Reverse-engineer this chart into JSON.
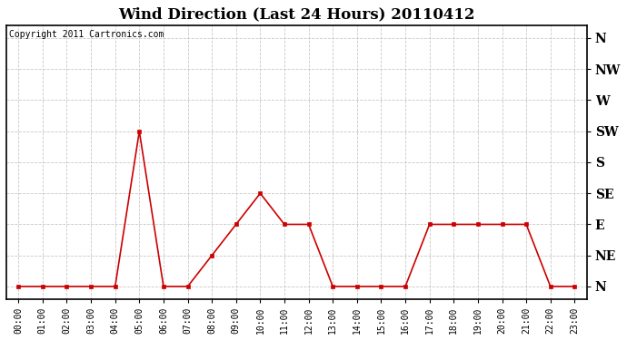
{
  "title": "Wind Direction (Last 24 Hours) 20110412",
  "copyright_text": "Copyright 2011 Cartronics.com",
  "hours": [
    "00:00",
    "01:00",
    "02:00",
    "03:00",
    "04:00",
    "05:00",
    "06:00",
    "07:00",
    "08:00",
    "09:00",
    "10:00",
    "11:00",
    "12:00",
    "13:00",
    "14:00",
    "15:00",
    "16:00",
    "17:00",
    "18:00",
    "19:00",
    "20:00",
    "21:00",
    "22:00",
    "23:00"
  ],
  "wind_values": [
    0,
    0,
    0,
    0,
    0,
    5,
    0,
    0,
    1,
    2,
    3,
    2,
    2,
    0,
    0,
    0,
    0,
    2,
    2,
    2,
    2,
    2,
    0,
    0
  ],
  "yticks": [
    0,
    1,
    2,
    3,
    4,
    5,
    6,
    7,
    8
  ],
  "ylabels": [
    "N",
    "NE",
    "E",
    "SE",
    "S",
    "SW",
    "W",
    "NW",
    "N"
  ],
  "line_color": "#cc0000",
  "marker": "s",
  "marker_size": 3,
  "grid_color": "#bbbbbb",
  "bg_color": "#ffffff",
  "title_fontsize": 12,
  "ylabel_fontsize": 10,
  "xlabel_fontsize": 7,
  "copyright_fontsize": 7,
  "figsize": [
    6.9,
    3.75
  ],
  "dpi": 100
}
